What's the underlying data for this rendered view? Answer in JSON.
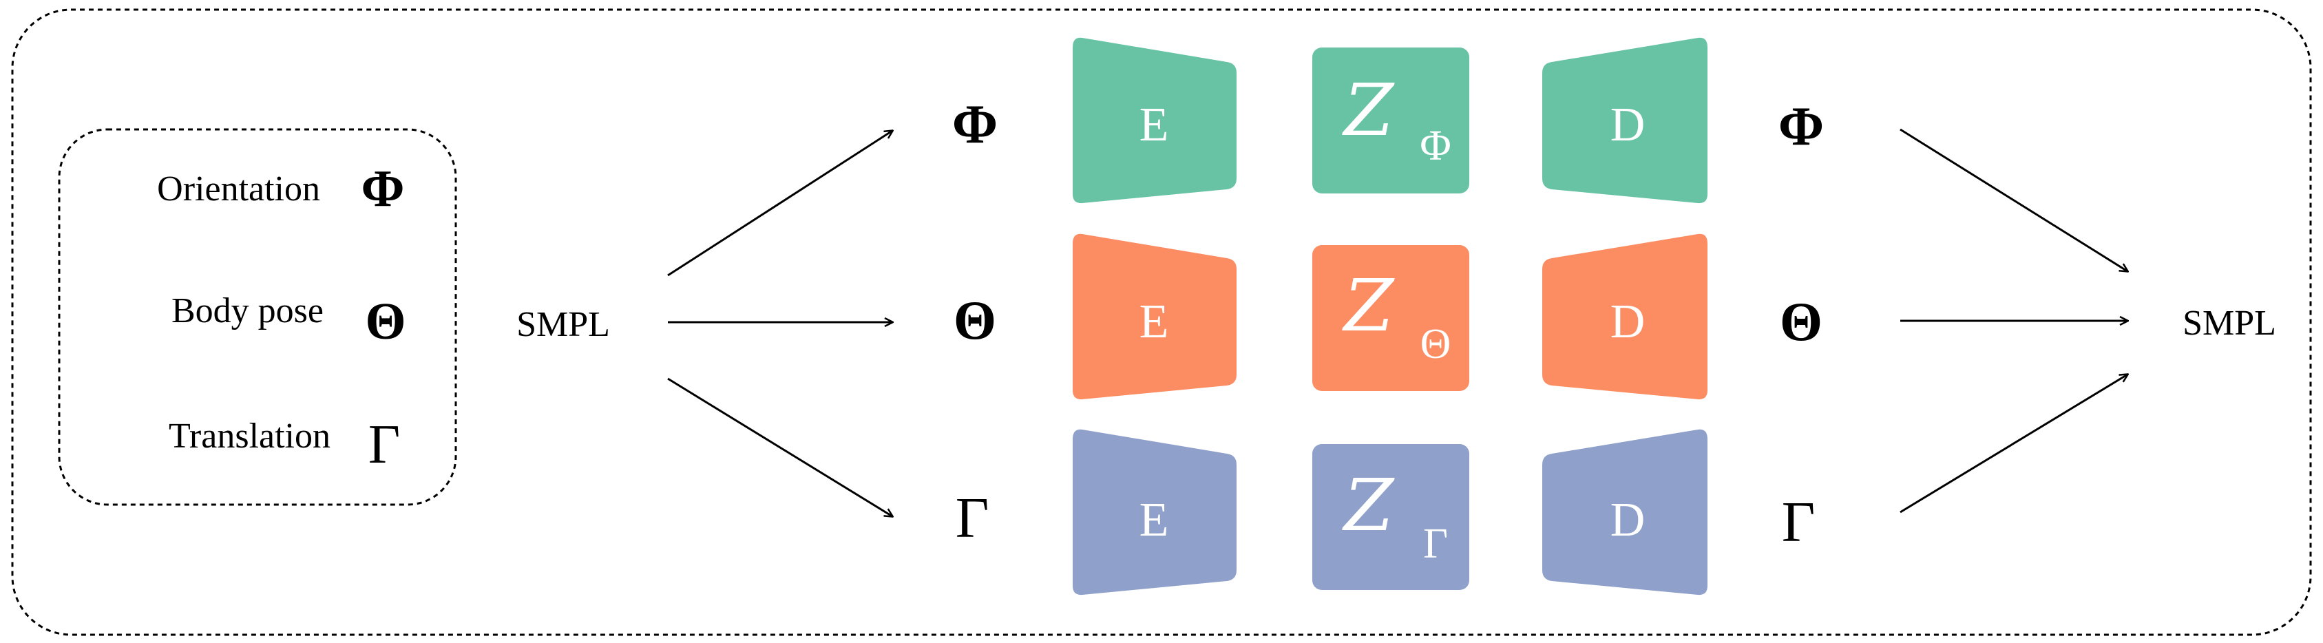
{
  "legend": {
    "items": [
      {
        "label": "Orientation",
        "symbol": "Φ"
      },
      {
        "label": "Body pose",
        "symbol": "Θ"
      },
      {
        "label": "Translation",
        "symbol": "Γ"
      }
    ]
  },
  "input_label": "SMPL",
  "output_label": "SMPL",
  "branches": [
    {
      "symbol": "Φ",
      "encoder": "E",
      "latent_letter": "Z",
      "latent_sub": "Φ",
      "decoder": "D",
      "out_symbol": "Φ",
      "color": "#67c3a4"
    },
    {
      "symbol": "Θ",
      "encoder": "E",
      "latent_letter": "Z",
      "latent_sub": "Θ",
      "decoder": "D",
      "out_symbol": "Θ",
      "color": "#fc8d62"
    },
    {
      "symbol": "Γ",
      "encoder": "E",
      "latent_letter": "Z",
      "latent_sub": "Γ",
      "decoder": "D",
      "out_symbol": "Γ",
      "color": "#8fa0ca"
    }
  ]
}
